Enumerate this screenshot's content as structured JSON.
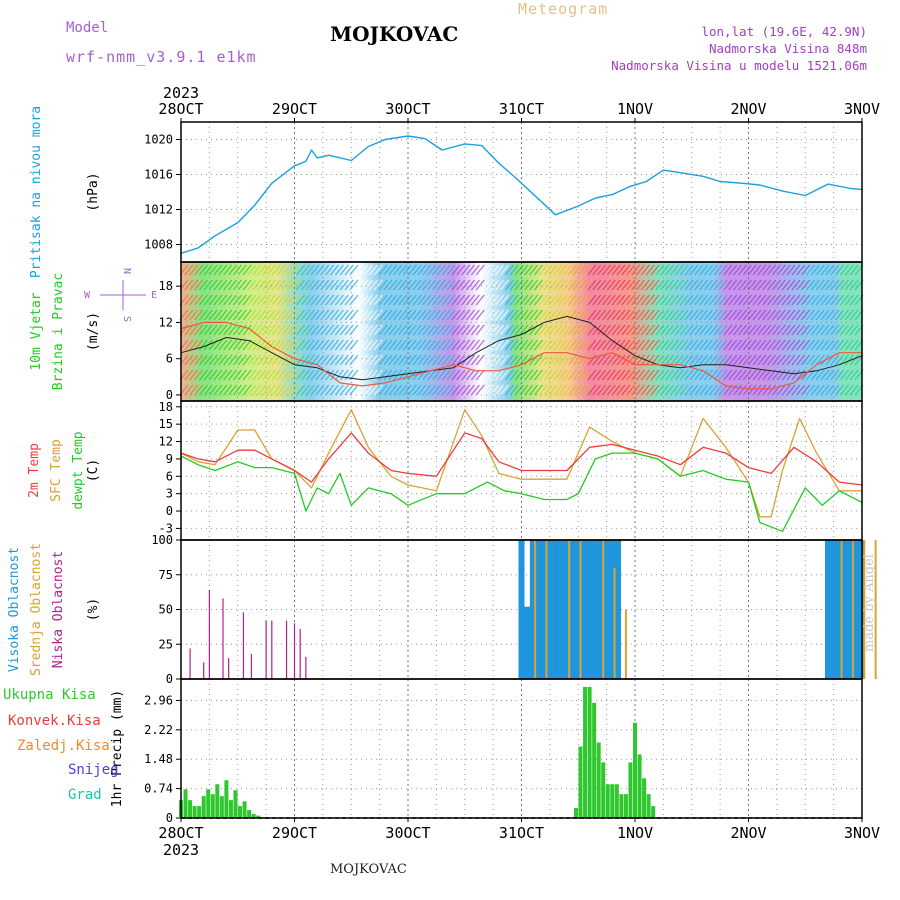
{
  "header": {
    "title": "MOJKOVAC",
    "meteogram": "Meteogram",
    "model_label": "Model",
    "model_name": "wrf-nmm_v3.9.1 e1km",
    "lonlat": "lon,lat (19.6E, 42.9N)",
    "elevation": "Nadmorska Visina 848m",
    "model_elevation": "Nadmorska Visina u modelu 1521.06m",
    "footer": "MOJKOVAC",
    "credit": "made by Angel"
  },
  "colors": {
    "pressure": "#1aa0e0",
    "temp2m": "#ee3c3c",
    "sfc": "#d9a233",
    "dewpt": "#22cc22",
    "cloud_high": "#1f96dc",
    "cloud_mid": "#d9a233",
    "cloud_low": "#b0208c",
    "precip": "#2ec82e"
  },
  "chart_data": [
    {
      "type": "line",
      "panel": "pressure",
      "ylabel": "(hPa)",
      "side_labels": [
        "Pritisak na nivou mora"
      ],
      "x_labels": [
        "28OCT",
        "29OCT",
        "30OCT",
        "31OCT",
        "1NOV",
        "2NOV",
        "3NOV"
      ],
      "year": "2023",
      "yticks": [
        1008,
        1012,
        1016,
        1020
      ],
      "ylim": [
        1006,
        1022
      ],
      "series": [
        {
          "key": "pressure",
          "x": [
            0,
            0.15,
            0.3,
            0.5,
            0.65,
            0.8,
            1.0,
            1.1,
            1.15,
            1.2,
            1.3,
            1.5,
            1.65,
            1.8,
            2.0,
            2.15,
            2.3,
            2.5,
            2.65,
            2.8,
            2.95,
            3.1,
            3.3,
            3.5,
            3.65,
            3.8,
            3.95,
            4.1,
            4.25,
            4.4,
            4.6,
            4.75,
            4.95,
            5.1,
            5.3,
            5.5,
            5.7,
            5.9,
            6.0
          ],
          "values": [
            1007,
            1007.6,
            1009,
            1010.5,
            1012.5,
            1015,
            1017,
            1017.5,
            1018.8,
            1017.9,
            1018.2,
            1017.6,
            1019.2,
            1020,
            1020.4,
            1020.1,
            1018.8,
            1019.5,
            1019.3,
            1017.3,
            1015.6,
            1013.8,
            1011.4,
            1012.4,
            1013.3,
            1013.7,
            1014.6,
            1015.2,
            1016.5,
            1016.2,
            1015.8,
            1015.2,
            1015,
            1014.8,
            1014.1,
            1013.6,
            1014.9,
            1014.4,
            1014.3
          ]
        }
      ]
    },
    {
      "type": "line",
      "panel": "wind",
      "ylabel": "(m/s)",
      "side_labels": [
        "10m Vjetar",
        "Brzina i Pravac"
      ],
      "compass": {
        "n": "N",
        "s": "S",
        "w": "W",
        "e": "E"
      },
      "yticks": [
        0,
        6,
        12,
        18
      ],
      "ylim": [
        -1,
        22
      ],
      "series": [
        {
          "key": "wind_speed",
          "x": [
            0,
            0.2,
            0.4,
            0.6,
            0.8,
            1.0,
            1.2,
            1.4,
            1.6,
            1.8,
            2.0,
            2.2,
            2.4,
            2.6,
            2.8,
            3.0,
            3.2,
            3.4,
            3.6,
            3.8,
            4.0,
            4.2,
            4.4,
            4.6,
            4.8,
            5.0,
            5.2,
            5.4,
            5.6,
            5.8,
            6.0
          ],
          "values": [
            7,
            8,
            9.5,
            9,
            7,
            5,
            4.5,
            3,
            2.5,
            3,
            3.5,
            4,
            4.5,
            7,
            9,
            10,
            12,
            13,
            12,
            9,
            6.5,
            5,
            4.5,
            5,
            5,
            4.5,
            4,
            3.5,
            4,
            5,
            6.5
          ]
        },
        {
          "key": "gust",
          "x": [
            0,
            0.2,
            0.4,
            0.6,
            0.8,
            1.0,
            1.2,
            1.4,
            1.6,
            1.8,
            2.0,
            2.2,
            2.4,
            2.6,
            2.8,
            3.0,
            3.2,
            3.4,
            3.6,
            3.8,
            4.0,
            4.2,
            4.4,
            4.6,
            4.8,
            5.0,
            5.2,
            5.4,
            5.6,
            5.8,
            6.0
          ],
          "values": [
            11,
            12,
            12,
            11,
            8,
            6,
            5,
            2,
            1.5,
            2,
            3,
            4,
            5,
            4,
            4,
            5,
            7,
            7,
            6,
            7,
            5,
            5,
            5,
            4,
            1.5,
            1,
            1,
            2,
            5,
            7,
            7
          ]
        }
      ]
    },
    {
      "type": "line",
      "panel": "temperature",
      "ylabel": "(C)",
      "side_labels": [
        "2m Temp",
        "SFC Temp",
        "dewpt Temp"
      ],
      "yticks": [
        -3,
        0,
        3,
        6,
        9,
        12,
        15,
        18
      ],
      "ylim": [
        -5,
        19
      ],
      "series": [
        {
          "key": "temp2m",
          "x": [
            0,
            0.15,
            0.3,
            0.5,
            0.65,
            0.8,
            1.0,
            1.15,
            1.3,
            1.5,
            1.65,
            1.85,
            2.0,
            2.25,
            2.5,
            2.65,
            2.8,
            3.0,
            3.2,
            3.4,
            3.6,
            3.8,
            4.0,
            4.2,
            4.4,
            4.6,
            4.8,
            5.0,
            5.2,
            5.4,
            5.6,
            5.8,
            6.0
          ],
          "values": [
            10,
            9,
            8.5,
            10.5,
            10.5,
            9,
            7,
            5,
            9,
            13.5,
            10,
            7,
            6.5,
            6,
            13.5,
            12.5,
            8.5,
            7,
            7,
            7,
            11,
            11.5,
            10.5,
            9.5,
            8,
            11,
            10,
            7.5,
            6.5,
            11,
            8.5,
            5,
            4.5
          ]
        },
        {
          "key": "sfc",
          "x": [
            0,
            0.15,
            0.3,
            0.5,
            0.65,
            0.8,
            1.0,
            1.15,
            1.3,
            1.5,
            1.65,
            1.85,
            2.0,
            2.25,
            2.5,
            2.65,
            2.8,
            3.0,
            3.2,
            3.4,
            3.6,
            3.8,
            4.0,
            4.2,
            4.4,
            4.6,
            4.8,
            5.0,
            5.1,
            5.2,
            5.3,
            5.45,
            5.6,
            5.8,
            6.0
          ],
          "values": [
            10,
            8.5,
            8,
            14,
            14,
            9,
            7,
            4,
            10,
            17.5,
            11,
            6,
            4.5,
            3.5,
            17.5,
            13,
            6.5,
            5.5,
            5.5,
            5.5,
            14.5,
            12,
            10,
            9,
            6,
            16,
            11,
            5,
            -1,
            -1,
            7,
            16,
            10,
            3.5,
            3.5
          ]
        },
        {
          "key": "dewpt",
          "x": [
            0,
            0.15,
            0.3,
            0.5,
            0.65,
            0.8,
            1.0,
            1.1,
            1.2,
            1.3,
            1.4,
            1.5,
            1.65,
            1.85,
            2.0,
            2.25,
            2.5,
            2.7,
            2.85,
            3.0,
            3.2,
            3.4,
            3.5,
            3.65,
            3.8,
            4.0,
            4.2,
            4.4,
            4.6,
            4.8,
            5.0,
            5.1,
            5.3,
            5.5,
            5.65,
            5.8,
            6.0
          ],
          "values": [
            9.5,
            8,
            7,
            8.5,
            7.5,
            7.5,
            6.5,
            0,
            4,
            3,
            6.5,
            1,
            4,
            3,
            1,
            3,
            3,
            5,
            3.5,
            3,
            2,
            2,
            3,
            9,
            10,
            10,
            9,
            6,
            7,
            5.5,
            5,
            -2,
            -3.5,
            4,
            1,
            3.5,
            1.5
          ]
        }
      ]
    },
    {
      "type": "bar",
      "panel": "clouds",
      "ylabel": "(%)",
      "side_labels": [
        "Visoka Oblacnost",
        "Srednja Oblacnost",
        "Niska Oblacnost"
      ],
      "yticks": [
        0,
        25,
        50,
        75,
        100
      ],
      "ylim": [
        0,
        100
      ],
      "series": [
        {
          "key": "cloud_low",
          "x": [
            0.08,
            0.2,
            0.25,
            0.37,
            0.42,
            0.55,
            0.62,
            0.75,
            0.8,
            0.93,
            1.0,
            1.05,
            1.1
          ],
          "values": [
            22,
            12,
            64,
            58,
            15,
            48,
            18,
            42,
            42,
            42,
            40,
            36,
            16
          ]
        },
        {
          "key": "cloud_high",
          "x": [
            3.0,
            3.05,
            3.1,
            3.15,
            3.2,
            3.25,
            3.3,
            3.35,
            3.4,
            3.45,
            3.5,
            3.55,
            3.6,
            3.65,
            3.7,
            3.75,
            3.8,
            3.85,
            5.7,
            5.75,
            5.8,
            5.85,
            5.9,
            5.95,
            6.0
          ],
          "values": [
            100,
            52,
            100,
            100,
            100,
            100,
            100,
            100,
            100,
            100,
            100,
            100,
            100,
            100,
            100,
            100,
            100,
            100,
            100,
            100,
            100,
            100,
            100,
            100,
            100
          ],
          "note_x_is_days_from_28oct": ""
        },
        {
          "key": "cloud_mid",
          "x": [
            3.12,
            3.22,
            3.42,
            3.52,
            3.72,
            3.82,
            3.92,
            5.82,
            5.92,
            6.02,
            6.12
          ],
          "values": [
            100,
            100,
            100,
            100,
            100,
            80,
            50,
            100,
            100,
            100,
            100
          ]
        }
      ]
    },
    {
      "type": "bar",
      "panel": "precip",
      "ylabel": "1hr Precip (mm)",
      "side_labels": [
        "Ukupna Kisa",
        "Konvek.Kisa",
        "Zaledj.Kisa",
        "Snijeg",
        "Grad"
      ],
      "yticks": [
        0,
        0.74,
        1.48,
        2.22,
        2.96
      ],
      "ylim": [
        0,
        3.5
      ],
      "series": [
        {
          "key": "precip",
          "x": [
            0.0,
            0.04,
            0.08,
            0.12,
            0.16,
            0.2,
            0.24,
            0.28,
            0.32,
            0.36,
            0.4,
            0.44,
            0.48,
            0.52,
            0.56,
            0.6,
            0.64,
            0.68,
            0.72,
            0.76,
            0.8,
            3.48,
            3.52,
            3.56,
            3.6,
            3.64,
            3.68,
            3.72,
            3.76,
            3.8,
            3.84,
            3.88,
            3.92,
            3.96,
            4.0,
            4.04,
            4.08,
            4.12,
            4.16
          ],
          "values": [
            0.45,
            0.72,
            0.45,
            0.3,
            0.3,
            0.55,
            0.72,
            0.6,
            0.85,
            0.55,
            0.95,
            0.45,
            0.7,
            0.3,
            0.42,
            0.2,
            0.1,
            0.06,
            0.02,
            0.02,
            0.01,
            0.25,
            1.8,
            3.3,
            3.3,
            2.9,
            1.9,
            1.4,
            0.85,
            0.85,
            0.85,
            0.6,
            0.6,
            1.4,
            2.4,
            1.6,
            1.0,
            0.6,
            0.3
          ]
        }
      ]
    }
  ]
}
